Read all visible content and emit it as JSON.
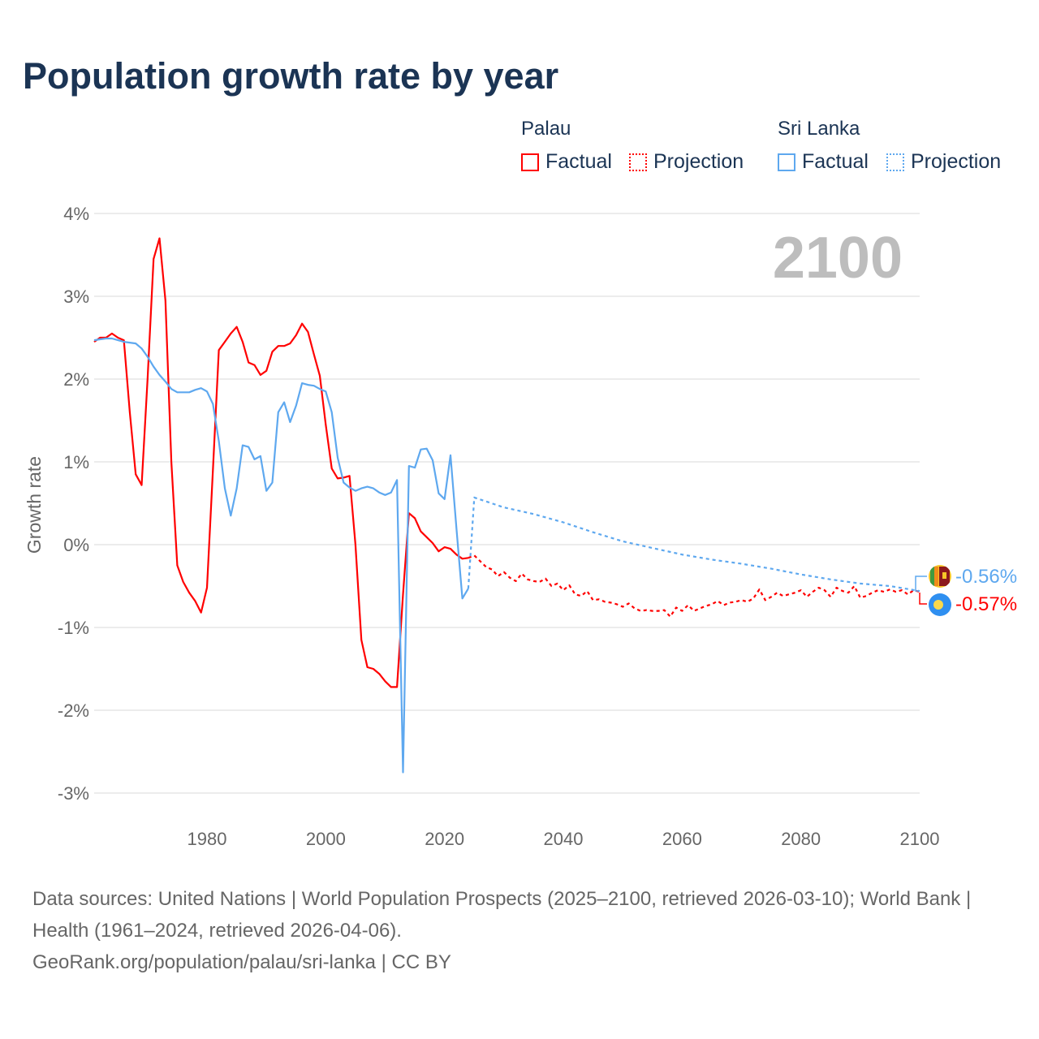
{
  "title": "Population growth rate by year",
  "legend": {
    "groups": [
      {
        "name": "Palau",
        "color": "#ff0000",
        "factual": "Factual",
        "projection": "Projection"
      },
      {
        "name": "Sri Lanka",
        "color": "#5ea8ef",
        "factual": "Factual",
        "projection": "Projection"
      }
    ]
  },
  "source": {
    "line1": "Data sources: United Nations | World Population Prospects (2025–2100, retrieved 2026-03-10); World Bank | Health (1961–2024, retrieved 2026-04-06).",
    "line2": "GeoRank.org/population/palau/sri-lanka | CC BY"
  },
  "chart_data": {
    "type": "line",
    "title": "Population growth rate by year",
    "xlabel": "",
    "ylabel": "Growth rate",
    "xlim": [
      1961,
      2100
    ],
    "ylim": [
      -3,
      4
    ],
    "x_ticks": [
      "1980",
      "2000",
      "2020",
      "2040",
      "2060",
      "2080",
      "2100"
    ],
    "y_ticks": [
      "4%",
      "3%",
      "2%",
      "1%",
      "0%",
      "-1%",
      "-2%",
      "-3%"
    ],
    "year_watermark": "2100",
    "grid": true,
    "end_labels": {
      "sri_lanka": "-0.56%",
      "palau": "-0.57%"
    },
    "series": [
      {
        "name": "Palau",
        "kind": "Factual",
        "color": "#ff0000",
        "start_year": 1961,
        "values": [
          2.45,
          2.5,
          2.5,
          2.55,
          2.5,
          2.47,
          1.6,
          0.85,
          0.72,
          2.0,
          3.45,
          3.7,
          2.95,
          1.0,
          -0.25,
          -0.45,
          -0.58,
          -0.68,
          -0.82,
          -0.52,
          0.9,
          2.35,
          2.45,
          2.55,
          2.63,
          2.45,
          2.2,
          2.17,
          2.05,
          2.1,
          2.33,
          2.4,
          2.4,
          2.43,
          2.53,
          2.67,
          2.57,
          2.3,
          2.04,
          1.45,
          0.92,
          0.8,
          0.81,
          0.83,
          0.0,
          -1.15,
          -1.48,
          -1.5,
          -1.56,
          -1.65,
          -1.72,
          -1.72,
          -0.6,
          0.38,
          0.32,
          0.16,
          0.09,
          0.02,
          -0.08,
          -0.03,
          -0.05,
          -0.12,
          -0.17,
          -0.16
        ]
      },
      {
        "name": "Palau",
        "kind": "Projection",
        "color": "#ff0000",
        "start_year": 2025,
        "values": [
          -0.13,
          -0.2,
          -0.27,
          -0.3,
          -0.38,
          -0.33,
          -0.4,
          -0.44,
          -0.35,
          -0.42,
          -0.44,
          -0.45,
          -0.41,
          -0.5,
          -0.47,
          -0.55,
          -0.49,
          -0.6,
          -0.62,
          -0.56,
          -0.67,
          -0.66,
          -0.69,
          -0.7,
          -0.72,
          -0.75,
          -0.71,
          -0.77,
          -0.8,
          -0.79,
          -0.8,
          -0.8,
          -0.79,
          -0.87,
          -0.76,
          -0.8,
          -0.73,
          -0.8,
          -0.77,
          -0.74,
          -0.72,
          -0.68,
          -0.73,
          -0.7,
          -0.69,
          -0.67,
          -0.69,
          -0.65,
          -0.54,
          -0.67,
          -0.63,
          -0.58,
          -0.62,
          -0.6,
          -0.58,
          -0.55,
          -0.63,
          -0.57,
          -0.52,
          -0.55,
          -0.63,
          -0.52,
          -0.56,
          -0.58,
          -0.5,
          -0.64,
          -0.62,
          -0.58,
          -0.55,
          -0.57,
          -0.54,
          -0.57,
          -0.55,
          -0.6,
          -0.55,
          -0.57
        ]
      },
      {
        "name": "Sri Lanka",
        "kind": "Factual",
        "color": "#5ea8ef",
        "start_year": 1961,
        "values": [
          2.47,
          2.48,
          2.49,
          2.49,
          2.47,
          2.45,
          2.44,
          2.43,
          2.37,
          2.27,
          2.15,
          2.05,
          1.97,
          1.88,
          1.84,
          1.84,
          1.84,
          1.87,
          1.89,
          1.85,
          1.7,
          1.25,
          0.68,
          0.35,
          0.68,
          1.2,
          1.18,
          1.03,
          1.07,
          0.65,
          0.75,
          1.6,
          1.72,
          1.48,
          1.68,
          1.95,
          1.93,
          1.92,
          1.88,
          1.85,
          1.6,
          1.05,
          0.75,
          0.69,
          0.65,
          0.68,
          0.7,
          0.68,
          0.63,
          0.6,
          0.63,
          0.78,
          -2.75,
          0.95,
          0.93,
          1.15,
          1.16,
          1.02,
          0.62,
          0.55,
          1.08,
          0.2,
          -0.65,
          -0.53
        ]
      },
      {
        "name": "Sri Lanka",
        "kind": "Projection",
        "color": "#5ea8ef",
        "points": [
          [
            2025,
            0.57
          ],
          [
            2030,
            0.45
          ],
          [
            2035,
            0.37
          ],
          [
            2040,
            0.27
          ],
          [
            2045,
            0.15
          ],
          [
            2050,
            0.04
          ],
          [
            2055,
            -0.04
          ],
          [
            2060,
            -0.12
          ],
          [
            2065,
            -0.18
          ],
          [
            2070,
            -0.23
          ],
          [
            2075,
            -0.29
          ],
          [
            2080,
            -0.36
          ],
          [
            2085,
            -0.42
          ],
          [
            2090,
            -0.47
          ],
          [
            2095,
            -0.5
          ],
          [
            2100,
            -0.56
          ]
        ]
      }
    ]
  }
}
